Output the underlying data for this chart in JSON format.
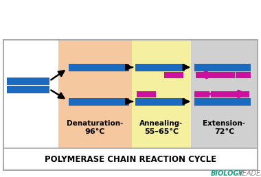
{
  "bg_color": "#ffffff",
  "denat_color": "#f5c8a0",
  "anneal_color": "#f5f0a0",
  "extend_color": "#d0d0d0",
  "blue_color": "#1a6bbf",
  "pink_color": "#cc10a0",
  "title": "POLYMERASE CHAIN REACTION CYCLE",
  "watermark_bio": "BIOLOGY",
  "watermark_reader": "READER",
  "watermark_color": "#1a9e88",
  "reader_color": "#888888",
  "label_denat_1": "Denaturation-",
  "label_denat_2": "96°C",
  "label_anneal_1": "Annealing-",
  "label_anneal_2": "55–65°C",
  "label_extend_1": "Extension-",
  "label_extend_2": "72°C",
  "border_color": "#aaaaaa"
}
